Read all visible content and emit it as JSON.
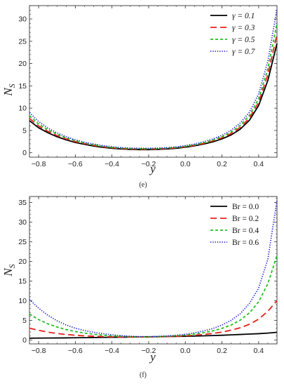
{
  "chart_data": [
    {
      "type": "line",
      "caption": "(e)",
      "xlabel": "y",
      "ylabel_main": "N",
      "ylabel_sub": "S",
      "xlim": [
        -0.85,
        0.5
      ],
      "ylim": [
        -1,
        33
      ],
      "xticks": [
        -0.8,
        -0.6,
        -0.4,
        -0.2,
        0.0,
        0.2,
        0.4
      ],
      "xtick_labels": [
        "−0.8",
        "−0.6",
        "−0.4",
        "−0.2",
        "0.0",
        "0.2",
        "0.4"
      ],
      "yticks": [
        0,
        5,
        10,
        15,
        20,
        25,
        30
      ],
      "ytick_labels": [
        "0",
        "5",
        "10",
        "15",
        "20",
        "25",
        "30"
      ],
      "legend_position": "top-right",
      "legend_symbol": "γ",
      "x": [
        -0.85,
        -0.8,
        -0.75,
        -0.7,
        -0.65,
        -0.6,
        -0.55,
        -0.5,
        -0.45,
        -0.4,
        -0.35,
        -0.3,
        -0.25,
        -0.2,
        -0.15,
        -0.1,
        -0.05,
        0.0,
        0.05,
        0.1,
        0.15,
        0.2,
        0.25,
        0.3,
        0.35,
        0.4,
        0.45,
        0.5
      ],
      "series": [
        {
          "name": "γ = 0.1",
          "color": "#000000",
          "dash": "solid",
          "values": [
            7.2,
            5.6,
            4.5,
            3.6,
            2.9,
            2.3,
            1.9,
            1.5,
            1.2,
            1.0,
            0.85,
            0.75,
            0.7,
            0.7,
            0.75,
            0.85,
            1.0,
            1.25,
            1.55,
            1.95,
            2.45,
            3.1,
            4.0,
            5.3,
            7.3,
            10.6,
            16.2,
            24.5
          ]
        },
        {
          "name": "γ = 0.3",
          "color": "#e8231a",
          "dash": "long-dash",
          "values": [
            7.7,
            6.0,
            4.8,
            3.85,
            3.1,
            2.5,
            2.05,
            1.65,
            1.35,
            1.1,
            0.95,
            0.85,
            0.8,
            0.8,
            0.85,
            0.95,
            1.1,
            1.35,
            1.65,
            2.1,
            2.65,
            3.35,
            4.3,
            5.7,
            7.8,
            11.3,
            17.5,
            26.5
          ]
        },
        {
          "name": "γ = 0.5",
          "color": "#22c020",
          "dash": "short-dash",
          "values": [
            8.3,
            6.45,
            5.15,
            4.15,
            3.35,
            2.7,
            2.2,
            1.8,
            1.45,
            1.2,
            1.05,
            0.95,
            0.9,
            0.9,
            0.95,
            1.05,
            1.2,
            1.45,
            1.8,
            2.25,
            2.85,
            3.6,
            4.65,
            6.15,
            8.4,
            12.1,
            18.8,
            29.0
          ]
        },
        {
          "name": "γ = 0.7",
          "color": "#2a2ad0",
          "dash": "dotted",
          "values": [
            9.0,
            7.0,
            5.55,
            4.45,
            3.6,
            2.9,
            2.35,
            1.95,
            1.6,
            1.35,
            1.15,
            1.05,
            1.0,
            1.0,
            1.05,
            1.15,
            1.3,
            1.6,
            1.95,
            2.45,
            3.1,
            3.9,
            5.05,
            6.7,
            9.1,
            13.2,
            20.5,
            32.3
          ]
        }
      ]
    },
    {
      "type": "line",
      "caption": "(f)",
      "xlabel": "y",
      "ylabel_main": "N",
      "ylabel_sub": "S",
      "xlim": [
        -0.85,
        0.5
      ],
      "ylim": [
        -1,
        36.5
      ],
      "xticks": [
        -0.8,
        -0.6,
        -0.4,
        -0.2,
        0.0,
        0.2,
        0.4
      ],
      "xtick_labels": [
        "−0.8",
        "−0.6",
        "−0.4",
        "−0.2",
        "0.0",
        "0.2",
        "0.4"
      ],
      "yticks": [
        0,
        5,
        10,
        15,
        20,
        25,
        30,
        35
      ],
      "ytick_labels": [
        "0",
        "5",
        "10",
        "15",
        "20",
        "25",
        "30",
        "35"
      ],
      "legend_position": "top-right",
      "legend_symbol": "Br",
      "x": [
        -0.85,
        -0.8,
        -0.75,
        -0.7,
        -0.65,
        -0.6,
        -0.55,
        -0.5,
        -0.45,
        -0.4,
        -0.35,
        -0.3,
        -0.25,
        -0.2,
        -0.15,
        -0.1,
        -0.05,
        0.0,
        0.05,
        0.1,
        0.15,
        0.2,
        0.25,
        0.3,
        0.35,
        0.4,
        0.45,
        0.5
      ],
      "series": [
        {
          "name": "Br = 0.0",
          "color": "#000000",
          "dash": "solid",
          "values": [
            0.45,
            0.47,
            0.49,
            0.51,
            0.53,
            0.56,
            0.59,
            0.62,
            0.65,
            0.68,
            0.71,
            0.74,
            0.77,
            0.8,
            0.83,
            0.87,
            0.9,
            0.95,
            1.0,
            1.05,
            1.12,
            1.2,
            1.3,
            1.4,
            1.5,
            1.6,
            1.75,
            1.95
          ]
        },
        {
          "name": "Br = 0.2",
          "color": "#e8231a",
          "dash": "long-dash",
          "values": [
            3.0,
            2.45,
            2.0,
            1.65,
            1.4,
            1.2,
            1.05,
            0.95,
            0.85,
            0.8,
            0.75,
            0.75,
            0.75,
            0.75,
            0.8,
            0.85,
            0.95,
            1.05,
            1.2,
            1.4,
            1.65,
            2.0,
            2.5,
            3.1,
            4.0,
            5.3,
            7.3,
            10.0
          ]
        },
        {
          "name": "Br = 0.4",
          "color": "#22c020",
          "dash": "short-dash",
          "values": [
            6.6,
            5.2,
            4.1,
            3.3,
            2.65,
            2.15,
            1.75,
            1.45,
            1.2,
            1.05,
            0.95,
            0.85,
            0.8,
            0.8,
            0.85,
            0.95,
            1.05,
            1.25,
            1.5,
            1.85,
            2.3,
            2.95,
            3.8,
            5.05,
            6.9,
            9.7,
            14.3,
            21.5
          ]
        },
        {
          "name": "Br = 0.6",
          "color": "#2a2ad0",
          "dash": "dotted",
          "values": [
            10.3,
            8.1,
            6.3,
            4.9,
            3.8,
            3.0,
            2.4,
            1.95,
            1.6,
            1.3,
            1.1,
            0.95,
            0.85,
            0.85,
            0.9,
            1.0,
            1.2,
            1.45,
            1.8,
            2.3,
            2.9,
            3.8,
            5.0,
            6.7,
            9.3,
            13.2,
            20.5,
            35.5
          ]
        }
      ]
    }
  ]
}
